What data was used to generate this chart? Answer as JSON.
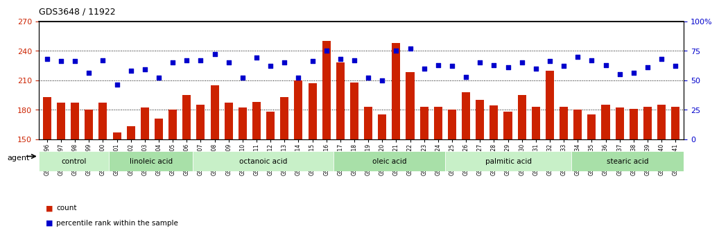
{
  "title": "GDS3648 / 11922",
  "samples": [
    "GSM525196",
    "GSM525197",
    "GSM525198",
    "GSM525199",
    "GSM525200",
    "GSM525201",
    "GSM525202",
    "GSM525203",
    "GSM525204",
    "GSM525205",
    "GSM525206",
    "GSM525207",
    "GSM525208",
    "GSM525209",
    "GSM525210",
    "GSM525211",
    "GSM525212",
    "GSM525213",
    "GSM525214",
    "GSM525215",
    "GSM525216",
    "GSM525217",
    "GSM525218",
    "GSM525219",
    "GSM525220",
    "GSM525221",
    "GSM525222",
    "GSM525223",
    "GSM525224",
    "GSM525225",
    "GSM525226",
    "GSM525227",
    "GSM525228",
    "GSM525229",
    "GSM525230",
    "GSM525231",
    "GSM525232",
    "GSM525233",
    "GSM525234",
    "GSM525235",
    "GSM525236",
    "GSM525237",
    "GSM525238",
    "GSM525239",
    "GSM525240",
    "GSM525241"
  ],
  "counts": [
    193,
    187,
    187,
    180,
    187,
    157,
    163,
    182,
    171,
    180,
    195,
    185,
    205,
    187,
    182,
    188,
    178,
    193,
    210,
    207,
    250,
    228,
    208,
    183,
    175,
    248,
    218,
    183,
    183,
    180,
    198,
    190,
    184,
    178,
    195,
    183,
    220,
    183,
    180,
    175,
    185,
    182,
    181,
    183,
    185,
    183
  ],
  "percentiles": [
    68,
    66,
    66,
    56,
    67,
    46,
    58,
    59,
    52,
    65,
    67,
    67,
    72,
    65,
    52,
    69,
    62,
    65,
    52,
    66,
    75,
    68,
    67,
    52,
    50,
    75,
    77,
    60,
    63,
    62,
    53,
    65,
    63,
    61,
    65,
    60,
    66,
    62,
    70,
    67,
    63,
    55,
    56,
    61,
    68,
    62
  ],
  "groups": [
    {
      "label": "control",
      "start": 0,
      "end": 5,
      "color": "#c8f0c8"
    },
    {
      "label": "linoleic acid",
      "start": 5,
      "end": 11,
      "color": "#c8f0c8"
    },
    {
      "label": "octanoic acid",
      "start": 11,
      "end": 21,
      "color": "#c8f0c8"
    },
    {
      "label": "oleic acid",
      "start": 21,
      "end": 29,
      "color": "#c8f0c8"
    },
    {
      "label": "palmitic acid",
      "start": 29,
      "end": 38,
      "color": "#c8f0c8"
    },
    {
      "label": "stearic acid",
      "start": 38,
      "end": 46,
      "color": "#c8f0c8"
    }
  ],
  "ylim_left": [
    150,
    270
  ],
  "ylim_right": [
    0,
    100
  ],
  "yticks_left": [
    150,
    180,
    210,
    240,
    270
  ],
  "yticks_right": [
    0,
    25,
    50,
    75,
    100
  ],
  "bar_color": "#cc2200",
  "dot_color": "#0000cc",
  "bg_color": "#f0f0f0",
  "legend_count_color": "#cc2200",
  "legend_pct_color": "#0000cc"
}
